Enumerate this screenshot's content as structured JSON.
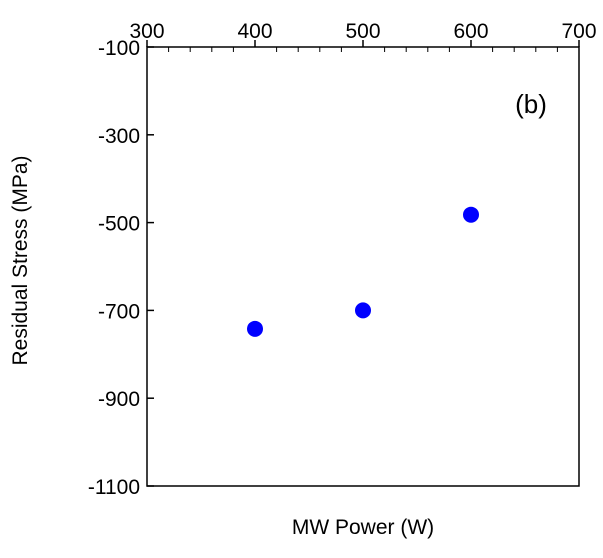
{
  "chart_data": {
    "type": "scatter",
    "title": "",
    "xlabel": "MW Power (W)",
    "ylabel": "Residual Stress (MPa)",
    "xlim": [
      300,
      700
    ],
    "ylim": [
      -1100,
      -100
    ],
    "x_ticks": [
      300,
      400,
      500,
      600,
      700
    ],
    "x_tick_labels": [
      "300",
      "400",
      "500",
      "600",
      "700"
    ],
    "y_ticks": [
      -100,
      -300,
      -500,
      -700,
      -900,
      -1100
    ],
    "y_tick_labels": [
      "-100",
      "-300",
      "-500",
      "-700",
      "-900",
      "-1100"
    ],
    "x_axis_position": "top",
    "grid": false,
    "legend": "none",
    "annotation": "(b)",
    "series": [
      {
        "x": [
          400,
          500,
          600
        ],
        "y": [
          -742,
          -700,
          -482
        ],
        "color": "#0000ff",
        "marker": "circle"
      }
    ]
  }
}
